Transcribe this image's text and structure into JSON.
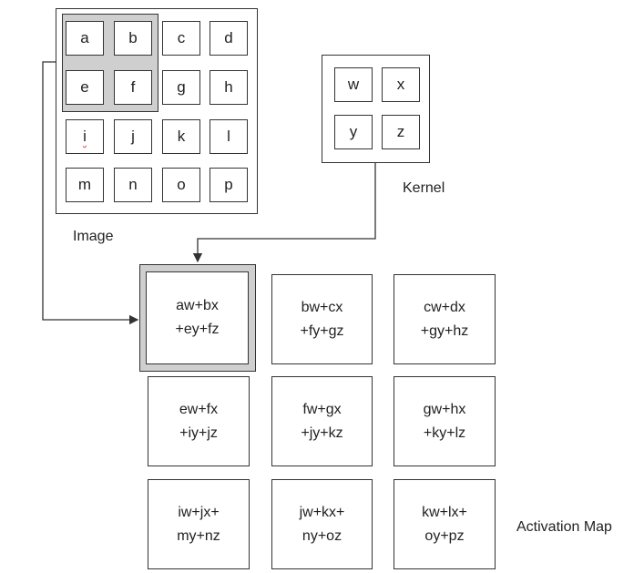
{
  "image": {
    "caption": "Image",
    "cells": [
      [
        "a",
        "b",
        "c",
        "d"
      ],
      [
        "e",
        "f",
        "g",
        "h"
      ],
      [
        "i",
        "j",
        "k",
        "l"
      ],
      [
        "m",
        "n",
        "o",
        "p"
      ]
    ]
  },
  "kernel": {
    "caption": "Kernel",
    "cells": [
      [
        "w",
        "x"
      ],
      [
        "y",
        "z"
      ]
    ]
  },
  "activation_map": {
    "caption": "Activation Map",
    "cells": [
      [
        [
          "aw+bx",
          "+ey+fz"
        ],
        [
          "bw+cx",
          "+fy+gz"
        ],
        [
          "cw+dx",
          "+gy+hz"
        ]
      ],
      [
        [
          "ew+fx",
          "+iy+jz"
        ],
        [
          "fw+gx",
          "+jy+kz"
        ],
        [
          "gw+hx",
          "+ky+lz"
        ]
      ],
      [
        [
          "iw+jx+",
          "my+nz"
        ],
        [
          "jw+kx+",
          "ny+oz"
        ],
        [
          "kw+lx+",
          "oy+pz"
        ]
      ]
    ]
  }
}
